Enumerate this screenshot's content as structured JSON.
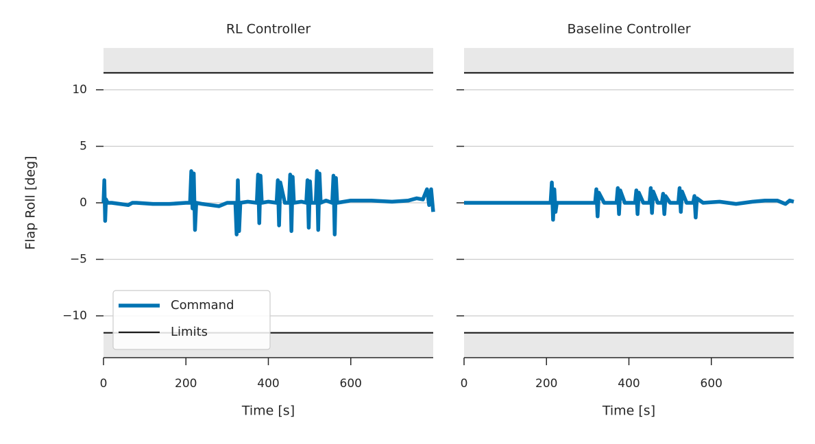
{
  "chart_data": [
    {
      "type": "line",
      "title": "RL Controller",
      "xlabel": "Time [s]",
      "ylabel": "Flap Roll [deg]",
      "xlim": [
        0,
        800
      ],
      "xticks": [
        0,
        200,
        400,
        600
      ],
      "ylim": [
        -13.7,
        13.7
      ],
      "yticks": [
        {
          "value": -10,
          "label": "−10"
        },
        {
          "value": -5,
          "label": "−5"
        },
        0,
        5,
        10
      ],
      "show_ytick_labels": true,
      "grid": true,
      "legend": "lower left",
      "limits": {
        "name": "Limits",
        "values": [
          -11.5,
          11.5
        ],
        "color": "#1a1a1a",
        "shade": "#e8e8e8"
      },
      "x": [
        0,
        2,
        4,
        6,
        10,
        20,
        40,
        60,
        70,
        80,
        120,
        160,
        200,
        210,
        213,
        216,
        219,
        222,
        225,
        240,
        280,
        300,
        320,
        323,
        326,
        329,
        332,
        350,
        372,
        375,
        378,
        381,
        384,
        400,
        420,
        423,
        426,
        429,
        440,
        450,
        453,
        456,
        459,
        462,
        480,
        492,
        495,
        498,
        501,
        504,
        515,
        518,
        521,
        524,
        527,
        540,
        555,
        558,
        561,
        564,
        567,
        600,
        650,
        700,
        740,
        760,
        775,
        785,
        790,
        795,
        800
      ],
      "series": [
        {
          "name": "Command",
          "color": "#0173b2",
          "values": [
            0,
            2,
            -1.6,
            0.3,
            0,
            0,
            -0.1,
            -0.2,
            0,
            0,
            -0.1,
            -0.1,
            0,
            0,
            2.8,
            -0.5,
            2.6,
            -2.4,
            0,
            -0.1,
            -0.3,
            0,
            0,
            -2.8,
            2,
            -2.5,
            0,
            0.1,
            0,
            2.5,
            -1.8,
            2.4,
            0,
            0.1,
            0,
            2,
            -2,
            1.8,
            0,
            0,
            2.5,
            -2.5,
            2.3,
            0,
            0.1,
            0,
            2,
            -2.2,
            1.9,
            0,
            0,
            2.8,
            -2.4,
            2.6,
            0,
            0.2,
            0,
            2.4,
            -2.8,
            2.2,
            0,
            0.2,
            0.2,
            0.1,
            0.2,
            0.4,
            0.3,
            1.2,
            -0.2,
            1.2,
            -0.8
          ]
        }
      ]
    },
    {
      "type": "line",
      "title": "Baseline Controller",
      "xlabel": "Time [s]",
      "xlim": [
        0,
        800
      ],
      "xticks": [
        0,
        200,
        400,
        600
      ],
      "ylim": [
        -13.7,
        13.7
      ],
      "yticks": [
        -10,
        -5,
        0,
        5,
        10
      ],
      "show_ytick_labels": false,
      "grid": true,
      "limits": {
        "values": [
          -11.5,
          11.5
        ],
        "color": "#1a1a1a",
        "shade": "#e8e8e8"
      },
      "x": [
        0,
        50,
        100,
        150,
        200,
        210,
        213,
        216,
        219,
        222,
        225,
        260,
        300,
        318,
        321,
        324,
        327,
        340,
        370,
        373,
        376,
        379,
        390,
        415,
        418,
        421,
        424,
        435,
        450,
        453,
        456,
        459,
        470,
        480,
        483,
        486,
        489,
        500,
        520,
        523,
        526,
        529,
        540,
        556,
        559,
        562,
        565,
        580,
        620,
        660,
        700,
        730,
        760,
        780,
        790,
        800
      ],
      "series": [
        {
          "color": "#0173b2",
          "values": [
            0,
            0,
            0,
            0,
            0,
            0,
            1.8,
            -1.5,
            1.2,
            -0.8,
            0,
            0,
            0,
            0,
            1.2,
            -1.2,
            0.9,
            0,
            0,
            1.3,
            -1,
            1.1,
            0,
            0,
            1.1,
            -1,
            0.9,
            0,
            0,
            1.3,
            -0.9,
            1,
            0,
            0,
            0.8,
            -1,
            0.6,
            0,
            0,
            1.3,
            -0.8,
            1,
            0,
            0,
            0.6,
            -1.3,
            0.4,
            0,
            0.1,
            -0.1,
            0.1,
            0.2,
            0.2,
            -0.1,
            0.2,
            0.1
          ]
        }
      ]
    }
  ]
}
